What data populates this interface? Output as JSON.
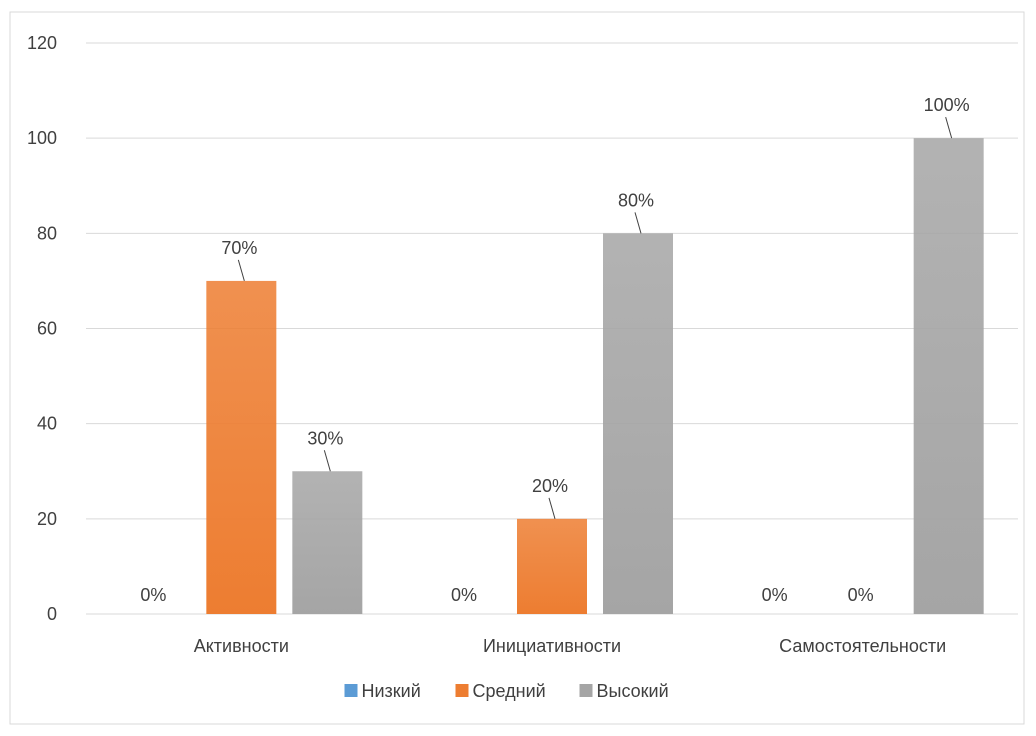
{
  "chart_data": {
    "type": "bar",
    "categories": [
      "Активности",
      "Инициативности",
      "Самостоятельности"
    ],
    "series": [
      {
        "name": "Низкий",
        "values": [
          0,
          0,
          0
        ],
        "labels": [
          "0%",
          "0%",
          "0%"
        ],
        "color": "#5b9bd5"
      },
      {
        "name": "Средний",
        "values": [
          70,
          20,
          0
        ],
        "labels": [
          "70%",
          "20%",
          "0%"
        ],
        "color": "#ed7d31"
      },
      {
        "name": "Высокий",
        "values": [
          30,
          80,
          100
        ],
        "labels": [
          "30%",
          "80%",
          "100%"
        ],
        "color": "#a5a5a5"
      }
    ],
    "ylim": [
      0,
      120
    ],
    "yticks": [
      "0",
      "20",
      "40",
      "60",
      "80",
      "100",
      "120"
    ],
    "grid": true,
    "legend_position": "bottom",
    "gridline_color": "#d9d9d9",
    "text_color": "#404040"
  }
}
